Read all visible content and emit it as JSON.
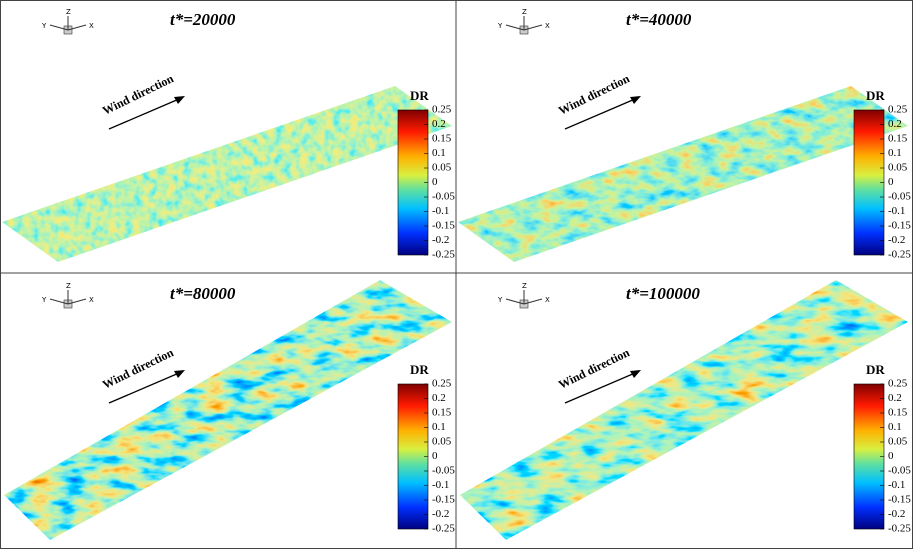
{
  "panels": [
    {
      "title": "t*=20000",
      "axes": [
        "Y",
        "Z",
        "X"
      ],
      "annotation": "Wind direction",
      "colorbar": {
        "title": "DR",
        "clim": [
          -0.25,
          0.25
        ],
        "ticks": [
          0.25,
          0.2,
          0.15,
          0.1,
          0.05,
          0,
          -0.05,
          -0.1,
          -0.15,
          -0.2,
          -0.25
        ]
      }
    },
    {
      "title": "t*=40000",
      "axes": [
        "Y",
        "Z",
        "X"
      ],
      "annotation": "Wind direction",
      "colorbar": {
        "title": "DR",
        "clim": [
          -0.25,
          0.25
        ],
        "ticks": [
          0.25,
          0.2,
          0.15,
          0.1,
          0.05,
          0,
          -0.05,
          -0.1,
          -0.15,
          -0.2,
          -0.25
        ]
      }
    },
    {
      "title": "t*=80000",
      "axes": [
        "Y",
        "Z",
        "X"
      ],
      "annotation": "Wind direction",
      "colorbar": {
        "title": "DR",
        "clim": [
          -0.25,
          0.25
        ],
        "ticks": [
          0.25,
          0.2,
          0.15,
          0.1,
          0.05,
          0,
          -0.05,
          -0.1,
          -0.15,
          -0.2,
          -0.25
        ]
      }
    },
    {
      "title": "t*=100000",
      "axes": [
        "Y",
        "Z",
        "X"
      ],
      "annotation": "Wind direction",
      "colorbar": {
        "title": "DR",
        "clim": [
          -0.25,
          0.25
        ],
        "ticks": [
          0.25,
          0.2,
          0.15,
          0.1,
          0.05,
          0,
          -0.05,
          -0.1,
          -0.15,
          -0.2,
          -0.25
        ]
      }
    }
  ]
}
